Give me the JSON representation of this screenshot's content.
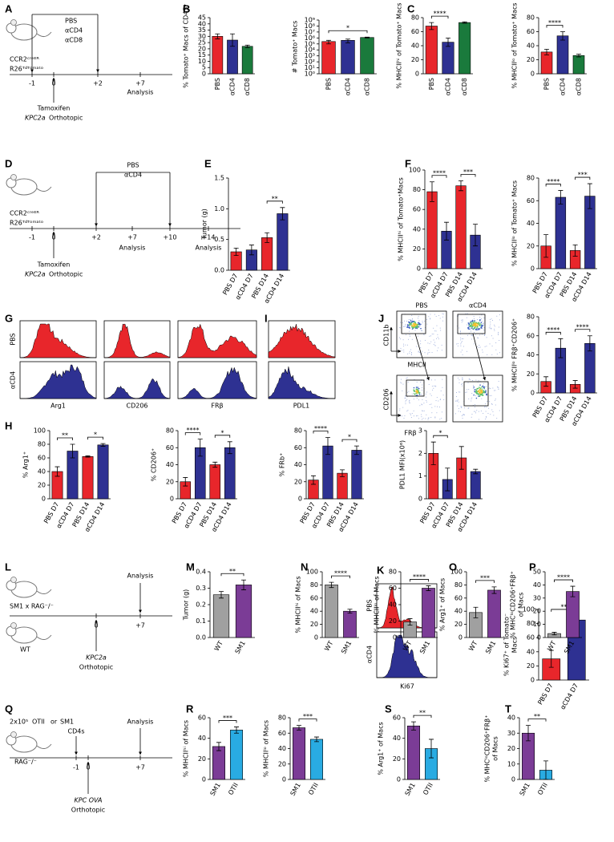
{
  "panel_labels": [
    "A",
    "B",
    "C",
    "D",
    "E",
    "F",
    "G",
    "H",
    "I",
    "J",
    "K",
    "L",
    "M",
    "N",
    "O",
    "P",
    "Q",
    "R",
    "S",
    "T"
  ],
  "schematics": [
    {
      "times": [
        "-1",
        "0",
        "+2",
        "+7"
      ],
      "texts": [
        {
          "text": "CCR2ᶜʳᵉᴱᴿ"
        },
        {
          "text": "R26ᵀᵈᵀᵒᵐᵃᵗᵒ"
        },
        {
          "text": "PBS",
          "color": "#e8262b"
        },
        {
          "text": "αCD4",
          "color": "#2e3192"
        },
        {
          "text": "αCD8",
          "color": "#1a7a3c"
        },
        {
          "text": "Tamoxifen"
        },
        {
          "text": "KPC2a",
          "italic": true
        },
        {
          "text": "Orthotopic"
        },
        {
          "text": "Analysis"
        }
      ]
    },
    {
      "times": [
        "-1",
        "0",
        "+2",
        "+7",
        "+10",
        "+14"
      ],
      "texts": [
        {
          "text": "CCR2ᶜʳᵉᴱᴿ"
        },
        {
          "text": "R26ᵀᵈᵀᵒᵐᵃᵗᵒ"
        },
        {
          "text": "PBS",
          "color": "#e8262b"
        },
        {
          "text": "αCD4",
          "color": "#2e3192"
        },
        {
          "text": "Tamoxifen"
        },
        {
          "text": "KPC2a",
          "italic": true
        },
        {
          "text": "Orthotopic"
        },
        {
          "text": "Analysis"
        },
        {
          "text": "Analysis"
        }
      ]
    },
    {
      "times": [
        "0",
        "+7"
      ],
      "texts": [
        {
          "text": "SM1 x RAG⁻/⁻",
          "color": "#7b3c96"
        },
        {
          "text": "WT",
          "color": "#8c8c8c"
        },
        {
          "text": "Analysis"
        },
        {
          "text": "KPC2a",
          "italic": true
        },
        {
          "text": "Orthotopic"
        }
      ]
    },
    {
      "times": [
        "-1",
        "0",
        "+7"
      ],
      "texts": [
        {
          "text": "2x10⁵"
        },
        {
          "text": "OTII",
          "color": "#29abe2"
        },
        {
          "text": "or"
        },
        {
          "text": "SM1",
          "color": "#7b3c96"
        },
        {
          "text": "CD4s"
        },
        {
          "text": "RAG⁻/⁻"
        },
        {
          "text": "Analysis"
        },
        {
          "text": "KPC OVA",
          "italic": true
        },
        {
          "text": "Orthotopic"
        }
      ]
    }
  ],
  "flow": {
    "g": {
      "rows": [
        "PBS",
        "αCD4"
      ],
      "markers": [
        "Arg1",
        "CD206",
        "FRβ"
      ]
    },
    "i": {
      "markers": [
        "PDL1"
      ]
    },
    "j": {
      "columns": [
        "PBS",
        "αCD4"
      ],
      "axes": [
        "CD11b",
        "MHCII",
        "CD206",
        "FRβ"
      ]
    },
    "k": {
      "rows": [
        "PBS",
        "αCD4"
      ],
      "markers": [
        "Ki67"
      ]
    }
  },
  "chart_data": [
    {
      "type": "bar",
      "ylabel": "% Tomato⁺ Macs of CD45⁺",
      "categories": [
        "PBS",
        "αCD4",
        "αCD8"
      ],
      "values": [
        30,
        27,
        22
      ],
      "errors": [
        2,
        5,
        1
      ],
      "colors": [
        "#e8262b",
        "#2e3192",
        "#1a7a3c"
      ],
      "ylim": [
        0,
        45
      ],
      "yticks": [
        0,
        5,
        10,
        15,
        20,
        25,
        30,
        35,
        40,
        45
      ],
      "significance": []
    },
    {
      "type": "bar",
      "log": true,
      "ylabel": "# Tomato⁺ Macs",
      "categories": [
        "PBS",
        "αCD4",
        "αCD8"
      ],
      "values": [
        250000,
        400000,
        1200000
      ],
      "errors": [
        150000,
        250000,
        200000
      ],
      "colors": [
        "#e8262b",
        "#2e3192",
        "#1a7a3c"
      ],
      "ylim": [
        1,
        1000000000
      ],
      "yticks": [
        {
          "value": 1,
          "label": "10⁰"
        },
        {
          "value": 10,
          "label": "10¹"
        },
        {
          "value": 100,
          "label": "10²"
        },
        {
          "value": 1000,
          "label": "10³"
        },
        {
          "value": 10000,
          "label": "10⁴"
        },
        {
          "value": 100000,
          "label": "10⁵"
        },
        {
          "value": 1000000,
          "label": "10⁶"
        },
        {
          "value": 10000000,
          "label": "10⁷"
        },
        {
          "value": 100000000,
          "label": "10⁸"
        },
        {
          "value": 1000000000,
          "label": "10⁹"
        }
      ],
      "significance": [
        {
          "pair": [
            0,
            2
          ],
          "label": "*"
        }
      ]
    },
    {
      "type": "bar",
      "ylabel": "% MHCIIʰⁱ of Tomato⁺ Macs",
      "categories": [
        "PBS",
        "αCD4",
        "αCD8"
      ],
      "values": [
        68,
        45,
        73
      ],
      "errors": [
        5,
        6,
        1
      ],
      "colors": [
        "#e8262b",
        "#2e3192",
        "#1a7a3c"
      ],
      "ylim": [
        0,
        80
      ],
      "yticks": [
        0,
        20,
        40,
        60,
        80
      ],
      "significance": [
        {
          "pair": [
            0,
            1
          ],
          "label": "****"
        }
      ]
    },
    {
      "type": "bar",
      "ylabel": "% MHCIIˡᵒ of Tomato⁺ Macs",
      "categories": [
        "PBS",
        "αCD4",
        "αCD8"
      ],
      "values": [
        31,
        54,
        26
      ],
      "errors": [
        4,
        6,
        2
      ],
      "colors": [
        "#e8262b",
        "#2e3192",
        "#1a7a3c"
      ],
      "ylim": [
        0,
        80
      ],
      "yticks": [
        0,
        20,
        40,
        60,
        80
      ],
      "significance": [
        {
          "pair": [
            0,
            1
          ],
          "label": "****"
        }
      ]
    },
    {
      "type": "bar",
      "ylabel": "Tumor (g)",
      "categories": [
        "PBS D7",
        "αCD4 D7",
        "PBS D14",
        "αCD4 D14"
      ],
      "values": [
        0.3,
        0.33,
        0.53,
        0.92
      ],
      "errors": [
        0.06,
        0.08,
        0.08,
        0.1
      ],
      "colors": [
        "#e8262b",
        "#2e3192",
        "#e8262b",
        "#2e3192"
      ],
      "ylim": [
        0,
        1.5
      ],
      "yticks": [
        {
          "value": 0,
          "label": "0.0"
        },
        0.5,
        {
          "value": 1,
          "label": "1.0"
        },
        1.5
      ],
      "significance": [
        {
          "pair": [
            2,
            3
          ],
          "label": "**"
        }
      ]
    },
    {
      "type": "bar",
      "ylabel": "% MHCIIʰⁱ of Tomato⁺Macs",
      "categories": [
        "PBS D7",
        "αCD4 D7",
        "PBS D14",
        "αCD4 D14"
      ],
      "values": [
        78,
        38,
        84,
        34
      ],
      "errors": [
        10,
        9,
        5,
        11
      ],
      "colors": [
        "#e8262b",
        "#2e3192",
        "#e8262b",
        "#2e3192"
      ],
      "ylim": [
        0,
        100
      ],
      "yticks": [
        0,
        20,
        40,
        60,
        80,
        100
      ],
      "significance": [
        {
          "pair": [
            0,
            1
          ],
          "label": "****"
        },
        {
          "pair": [
            2,
            3
          ],
          "label": "***"
        }
      ]
    },
    {
      "type": "bar",
      "ylabel": "% MHCIIˡᵒ of Tomato⁺ Macs",
      "categories": [
        "PBS D7",
        "αCD4 D7",
        "PBS D14",
        "αCD4 D14"
      ],
      "values": [
        20,
        63,
        16,
        64
      ],
      "errors": [
        10,
        6,
        5,
        11
      ],
      "colors": [
        "#e8262b",
        "#2e3192",
        "#e8262b",
        "#2e3192"
      ],
      "ylim": [
        0,
        80
      ],
      "yticks": [
        0,
        20,
        40,
        60,
        80
      ],
      "significance": [
        {
          "pair": [
            0,
            1
          ],
          "label": "****"
        },
        {
          "pair": [
            2,
            3
          ],
          "label": "***"
        }
      ]
    },
    {
      "type": "bar",
      "ylabel": "% Arg1⁺",
      "categories": [
        "PBS D7",
        "αCD4 D7",
        "PBS D14",
        "αCD4 D14"
      ],
      "values": [
        40,
        70,
        62,
        79
      ],
      "errors": [
        7,
        10,
        1,
        2
      ],
      "colors": [
        "#e8262b",
        "#2e3192",
        "#e8262b",
        "#2e3192"
      ],
      "ylim": [
        0,
        100
      ],
      "yticks": [
        0,
        20,
        40,
        60,
        80,
        100
      ],
      "significance": [
        {
          "pair": [
            0,
            1
          ],
          "label": "**"
        },
        {
          "pair": [
            2,
            3
          ],
          "label": "*"
        }
      ]
    },
    {
      "type": "bar",
      "ylabel": "% CD206⁺",
      "categories": [
        "PBS D7",
        "αCD4 D7",
        "PBS D14",
        "αCD4 D14"
      ],
      "values": [
        20,
        60,
        40,
        60
      ],
      "errors": [
        5,
        10,
        3,
        7
      ],
      "colors": [
        "#e8262b",
        "#2e3192",
        "#e8262b",
        "#2e3192"
      ],
      "ylim": [
        0,
        80
      ],
      "yticks": [
        0,
        20,
        40,
        60,
        80
      ],
      "significance": [
        {
          "pair": [
            0,
            1
          ],
          "label": "****"
        },
        {
          "pair": [
            2,
            3
          ],
          "label": "*"
        }
      ]
    },
    {
      "type": "bar",
      "ylabel": "% FRb⁺",
      "categories": [
        "PBS D7",
        "αCD4 D7",
        "PBS D14",
        "αCD4 D14"
      ],
      "values": [
        22,
        62,
        30,
        57
      ],
      "errors": [
        5,
        10,
        4,
        5
      ],
      "colors": [
        "#e8262b",
        "#2e3192",
        "#e8262b",
        "#2e3192"
      ],
      "ylim": [
        0,
        80
      ],
      "yticks": [
        0,
        20,
        40,
        60,
        80
      ],
      "significance": [
        {
          "pair": [
            0,
            1
          ],
          "label": "****"
        },
        {
          "pair": [
            2,
            3
          ],
          "label": "*"
        }
      ]
    },
    {
      "type": "bar",
      "ylabel": "PDL1 MFI(x10⁶)",
      "categories": [
        "PBS D7",
        "αCD4 D7",
        "PBS D14",
        "αCD4 D14"
      ],
      "values": [
        2,
        0.85,
        1.8,
        1.2
      ],
      "errors": [
        0.5,
        0.5,
        0.5,
        0.1
      ],
      "colors": [
        "#e8262b",
        "#2e3192",
        "#e8262b",
        "#2e3192"
      ],
      "ylim": [
        0,
        3
      ],
      "yticks": [
        0,
        1,
        2,
        3
      ],
      "significance": [
        {
          "pair": [
            0,
            1
          ],
          "label": "*"
        }
      ]
    },
    {
      "type": "bar",
      "ylabel": "% MHCIIˡᵒ FRβ⁺CD206⁺",
      "categories": [
        "PBS D7",
        "αCD4 D7",
        "PBS D14",
        "αCD4 D14"
      ],
      "values": [
        12,
        47,
        9,
        52
      ],
      "errors": [
        5,
        10,
        4,
        8
      ],
      "colors": [
        "#e8262b",
        "#2e3192",
        "#e8262b",
        "#2e3192"
      ],
      "ylim": [
        0,
        80
      ],
      "yticks": [
        0,
        20,
        40,
        60,
        80
      ],
      "significance": [
        {
          "pair": [
            0,
            1
          ],
          "label": "****"
        },
        {
          "pair": [
            2,
            3
          ],
          "label": "****"
        }
      ]
    },
    {
      "type": "bar",
      "ylabel": [
        "% Ki67⁺ of Tomato⁻",
        "Macs"
      ],
      "categories": [
        "PBS D7",
        "αCD4 D7"
      ],
      "values": [
        30,
        85
      ],
      "errors": [
        12,
        6
      ],
      "colors": [
        "#e8262b",
        "#2e3192"
      ],
      "ylim": [
        0,
        100
      ],
      "yticks": [
        0,
        20,
        40,
        60,
        80,
        100
      ],
      "significance": [
        {
          "pair": [
            0,
            1
          ],
          "label": "**"
        }
      ]
    },
    {
      "type": "bar",
      "ylabel": "Tumor (g)",
      "categories": [
        "WT",
        "SM1"
      ],
      "values": [
        0.26,
        0.32
      ],
      "errors": [
        0.02,
        0.03
      ],
      "colors": [
        "#a0a0a0",
        "#7b3c96"
      ],
      "ylim": [
        0,
        0.4
      ],
      "yticks": [
        {
          "value": 0,
          "label": "0.0"
        },
        0.1,
        0.2,
        0.3,
        0.4
      ],
      "significance": [
        {
          "pair": [
            0,
            1
          ],
          "label": "**"
        }
      ]
    },
    {
      "type": "bar",
      "ylabel": "% MHCIIʰⁱ of Macs",
      "categories": [
        "WT",
        "SM1"
      ],
      "values": [
        80,
        40
      ],
      "errors": [
        4,
        3
      ],
      "colors": [
        "#a0a0a0",
        "#7b3c96"
      ],
      "ylim": [
        0,
        100
      ],
      "yticks": [
        0,
        20,
        40,
        60,
        80,
        100
      ],
      "significance": [
        {
          "pair": [
            0,
            1
          ],
          "label": "****"
        }
      ]
    },
    {
      "type": "bar",
      "ylabel": "% MHCIIˡᵒ of Macs",
      "categories": [
        "WT",
        "SM1"
      ],
      "values": [
        19,
        60
      ],
      "errors": [
        4,
        3
      ],
      "colors": [
        "#a0a0a0",
        "#7b3c96"
      ],
      "ylim": [
        0,
        80
      ],
      "yticks": [
        0,
        20,
        40,
        60,
        80
      ],
      "significance": [
        {
          "pair": [
            0,
            1
          ],
          "label": "****"
        }
      ]
    },
    {
      "type": "bar",
      "ylabel": "% Arg1⁺ of Macs",
      "categories": [
        "WT",
        "SM1"
      ],
      "values": [
        38,
        72
      ],
      "errors": [
        8,
        5
      ],
      "colors": [
        "#a0a0a0",
        "#7b3c96"
      ],
      "ylim": [
        0,
        100
      ],
      "yticks": [
        0,
        20,
        40,
        60,
        80,
        100
      ],
      "significance": [
        {
          "pair": [
            0,
            1
          ],
          "label": "***"
        }
      ]
    },
    {
      "type": "bar",
      "ylabel": [
        "% MHCˡᵒCD206⁺FRβ⁺",
        "of Macs"
      ],
      "categories": [
        "WT",
        "SM1"
      ],
      "values": [
        3,
        35
      ],
      "errors": [
        1,
        4
      ],
      "colors": [
        "#a0a0a0",
        "#7b3c96"
      ],
      "ylim": [
        0,
        50
      ],
      "yticks": [
        0,
        10,
        20,
        30,
        40,
        50
      ],
      "significance": [
        {
          "pair": [
            0,
            1
          ],
          "label": "****"
        }
      ]
    },
    {
      "type": "bar",
      "ylabel": "% MHCIIʰⁱ of Macs",
      "categories": [
        "SM1",
        "OTII"
      ],
      "values": [
        32,
        48
      ],
      "errors": [
        4,
        3
      ],
      "colors": [
        "#7b3c96",
        "#29abe2"
      ],
      "ylim": [
        0,
        60
      ],
      "yticks": [
        0,
        20,
        40,
        60
      ],
      "significance": [
        {
          "pair": [
            0,
            1
          ],
          "label": "***"
        }
      ]
    },
    {
      "type": "bar",
      "ylabel": "% MHCIIˡᵒ of Macs",
      "categories": [
        "SM1",
        "OTII"
      ],
      "values": [
        67,
        52
      ],
      "errors": [
        3,
        3
      ],
      "colors": [
        "#7b3c96",
        "#29abe2"
      ],
      "ylim": [
        0,
        80
      ],
      "yticks": [
        0,
        20,
        40,
        60,
        80
      ],
      "significance": [
        {
          "pair": [
            0,
            1
          ],
          "label": "***"
        }
      ]
    },
    {
      "type": "bar",
      "ylabel": "% Arg1⁺ of Macs",
      "categories": [
        "SM1",
        "OTII"
      ],
      "values": [
        52,
        30
      ],
      "errors": [
        4,
        9
      ],
      "colors": [
        "#7b3c96",
        "#29abe2"
      ],
      "ylim": [
        0,
        60
      ],
      "yticks": [
        0,
        20,
        40,
        60
      ],
      "significance": [
        {
          "pair": [
            0,
            1
          ],
          "label": "**"
        }
      ]
    },
    {
      "type": "bar",
      "ylabel": [
        "% MHCˡᵒCD206⁺FRβ⁺",
        "of Macs"
      ],
      "categories": [
        "SM1",
        "OTII"
      ],
      "values": [
        30,
        6
      ],
      "errors": [
        5,
        6
      ],
      "colors": [
        "#7b3c96",
        "#29abe2"
      ],
      "ylim": [
        0,
        40
      ],
      "yticks": [
        0,
        10,
        20,
        30,
        40
      ],
      "significance": [
        {
          "pair": [
            0,
            1
          ],
          "label": "**"
        }
      ]
    }
  ]
}
